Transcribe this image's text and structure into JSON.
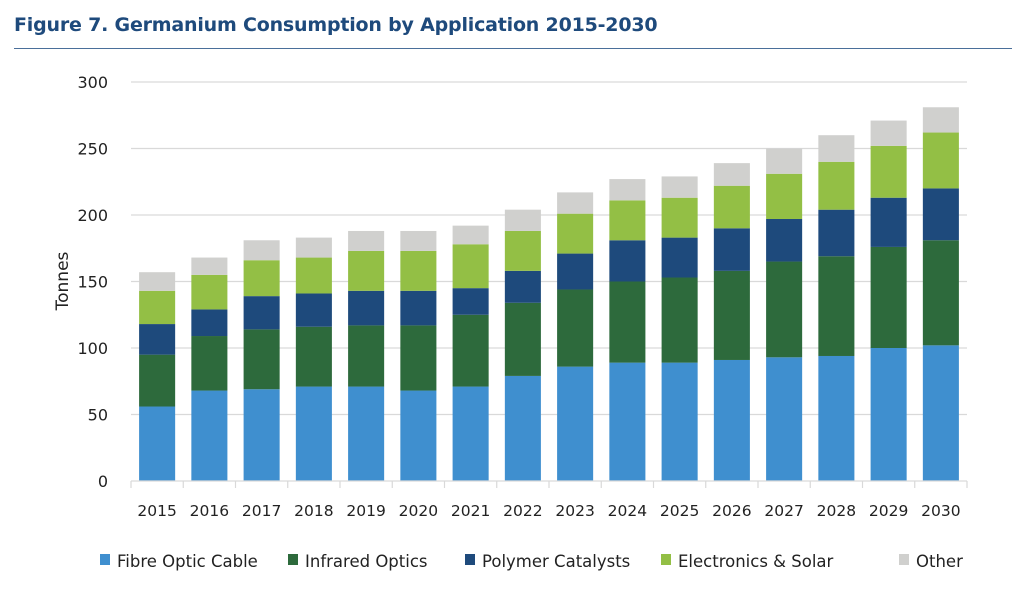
{
  "figure": {
    "title": "Figure 7. Germanium Consumption by Application 2015-2030"
  },
  "chart_data": {
    "type": "bar",
    "stacked": true,
    "title": "Figure 7. Germanium Consumption by Application 2015-2030",
    "xlabel": "",
    "ylabel": "Tonnes",
    "ylim": [
      0,
      300
    ],
    "yticks": [
      "0",
      "50",
      "100",
      "150",
      "200",
      "250",
      "300"
    ],
    "grid": true,
    "legend_position": "bottom",
    "categories": [
      "2015",
      "2016",
      "2017",
      "2018",
      "2019",
      "2020",
      "2021",
      "2022",
      "2023",
      "2024",
      "2025",
      "2026",
      "2027",
      "2028",
      "2029",
      "2030"
    ],
    "series": [
      {
        "name": "Fibre Optic Cable",
        "color": "#3f8fcf",
        "values": [
          56,
          68,
          69,
          71,
          71,
          68,
          71,
          79,
          86,
          89,
          89,
          91,
          93,
          94,
          100,
          102
        ]
      },
      {
        "name": "Infrared Optics",
        "color": "#2d6a3c",
        "values": [
          39,
          41,
          45,
          45,
          46,
          49,
          54,
          55,
          58,
          61,
          64,
          67,
          72,
          75,
          76,
          79
        ]
      },
      {
        "name": "Polymer Catalysts",
        "color": "#1e4a7c",
        "values": [
          23,
          20,
          25,
          25,
          26,
          26,
          20,
          24,
          27,
          31,
          30,
          32,
          32,
          35,
          37,
          39
        ]
      },
      {
        "name": "Electronics & Solar",
        "color": "#93bf45",
        "values": [
          25,
          26,
          27,
          27,
          30,
          30,
          33,
          30,
          30,
          30,
          30,
          32,
          34,
          36,
          39,
          42
        ]
      },
      {
        "name": "Other",
        "color": "#d0d0ce",
        "values": [
          14,
          13,
          15,
          15,
          15,
          15,
          14,
          16,
          16,
          16,
          16,
          17,
          19,
          20,
          19,
          19
        ]
      }
    ]
  }
}
